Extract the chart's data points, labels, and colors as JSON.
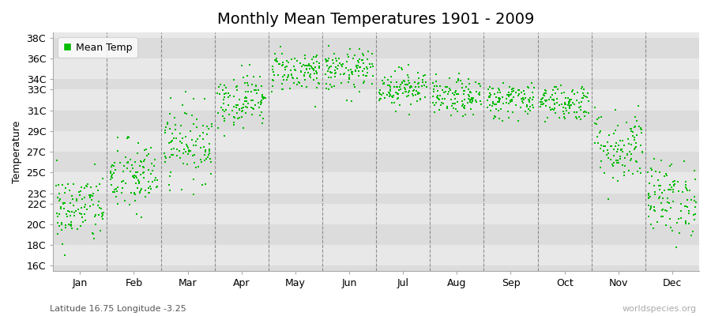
{
  "title": "Monthly Mean Temperatures 1901 - 2009",
  "subtitle": "Latitude 16.75 Longitude -3.25",
  "watermark": "worldspecies.org",
  "ylabel": "Temperature",
  "yticks": [
    16,
    18,
    20,
    22,
    23,
    25,
    27,
    29,
    31,
    33,
    34,
    36,
    38
  ],
  "ytick_labels": [
    "16C",
    "18C",
    "20C",
    "22C",
    "23C",
    "25C",
    "27C",
    "29C",
    "31C",
    "33C",
    "34C",
    "36C",
    "38C"
  ],
  "ylim": [
    15.5,
    38.5
  ],
  "months": [
    "Jan",
    "Feb",
    "Mar",
    "Apr",
    "May",
    "Jun",
    "Jul",
    "Aug",
    "Sep",
    "Oct",
    "Nov",
    "Dec"
  ],
  "month_means": [
    21.5,
    24.5,
    27.8,
    32.0,
    34.8,
    34.8,
    33.2,
    32.2,
    32.0,
    31.8,
    27.5,
    22.5
  ],
  "month_stds": [
    1.7,
    1.8,
    1.8,
    1.3,
    1.0,
    1.0,
    0.9,
    0.9,
    0.9,
    0.9,
    1.8,
    1.8
  ],
  "n_years": 109,
  "dot_color": "#00bb00",
  "dot_size": 4,
  "background_color": "#ffffff",
  "plot_bg_color": "#e8e8e8",
  "band_colors": [
    "#dcdcdc",
    "#e8e8e8"
  ],
  "dashed_line_color": "#777777",
  "title_fontsize": 14,
  "axis_label_fontsize": 9,
  "tick_fontsize": 9,
  "legend_marker_color": "#00bb00",
  "spine_color": "#aaaaaa"
}
